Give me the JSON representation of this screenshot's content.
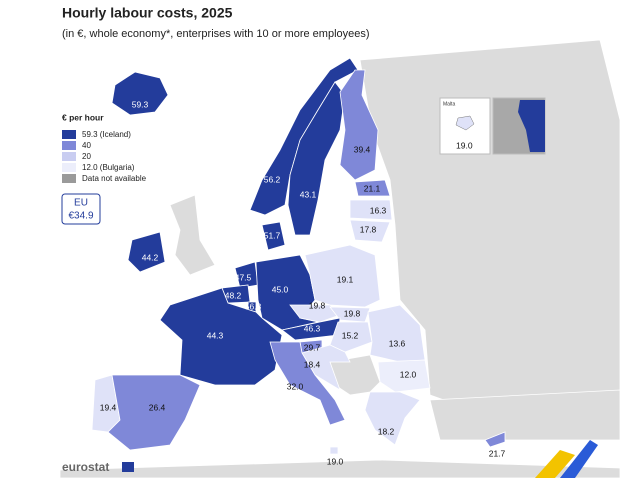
{
  "header": {
    "title": "Hourly labour costs, 2025",
    "subtitle": "(in €, whole economy*, enterprises with 10 or more employees)"
  },
  "legend": {
    "title": "€ per hour",
    "items": [
      {
        "label": "59.3 (Iceland)",
        "color": "#233c9b"
      },
      {
        "label": "40",
        "color": "#7f88d8"
      },
      {
        "label": "20",
        "color": "#c9cdf1"
      },
      {
        "label": "12.0 (Bulgaria)",
        "color": "#eceefb"
      },
      {
        "label": "Data not available",
        "color": "#9a9a9a"
      }
    ]
  },
  "eu": {
    "label": "EU",
    "value": "€34.9"
  },
  "regions": [
    {
      "value": "59.3",
      "color": "#233c9b"
    },
    {
      "value": "56.2",
      "color": "#233c9b"
    },
    {
      "value": "43.1",
      "color": "#233c9b"
    },
    {
      "value": "39.4",
      "color": "#7f88d8"
    },
    {
      "value": "21.1",
      "color": "#7f88d8"
    },
    {
      "value": "16.3",
      "color": "#dfe2f8"
    },
    {
      "value": "17.8",
      "color": "#dfe2f8"
    },
    {
      "value": "51.7",
      "color": "#233c9b"
    },
    {
      "value": "44.2",
      "color": "#233c9b"
    },
    {
      "value": "47.5",
      "color": "#233c9b"
    },
    {
      "value": "48.2",
      "color": "#233c9b"
    },
    {
      "value": "56.8",
      "color": "#233c9b"
    },
    {
      "value": "45.0",
      "color": "#233c9b"
    },
    {
      "value": "19.1",
      "color": "#dfe2f8"
    },
    {
      "value": "19.8",
      "color": "#dfe2f8"
    },
    {
      "value": "19.8",
      "color": "#dfe2f8"
    },
    {
      "value": "44.3",
      "color": "#233c9b"
    },
    {
      "value": "46.3",
      "color": "#233c9b"
    },
    {
      "value": "15.2",
      "color": "#dfe2f8"
    },
    {
      "value": "13.6",
      "color": "#dfe2f8"
    },
    {
      "value": "29.7",
      "color": "#7f88d8"
    },
    {
      "value": "18.4",
      "color": "#dfe2f8"
    },
    {
      "value": "12.0",
      "color": "#eceefb"
    },
    {
      "value": "32.0",
      "color": "#7f88d8"
    },
    {
      "value": "19.4",
      "color": "#dfe2f8"
    },
    {
      "value": "26.4",
      "color": "#7f88d8"
    },
    {
      "value": "18.2",
      "color": "#dfe2f8"
    },
    {
      "value": "19.0",
      "color": "#dfe2f8"
    },
    {
      "value": "21.7",
      "color": "#7f88d8"
    }
  ],
  "inset": {
    "label": "Malta",
    "value": "19.0"
  },
  "logo": "eurostat"
}
